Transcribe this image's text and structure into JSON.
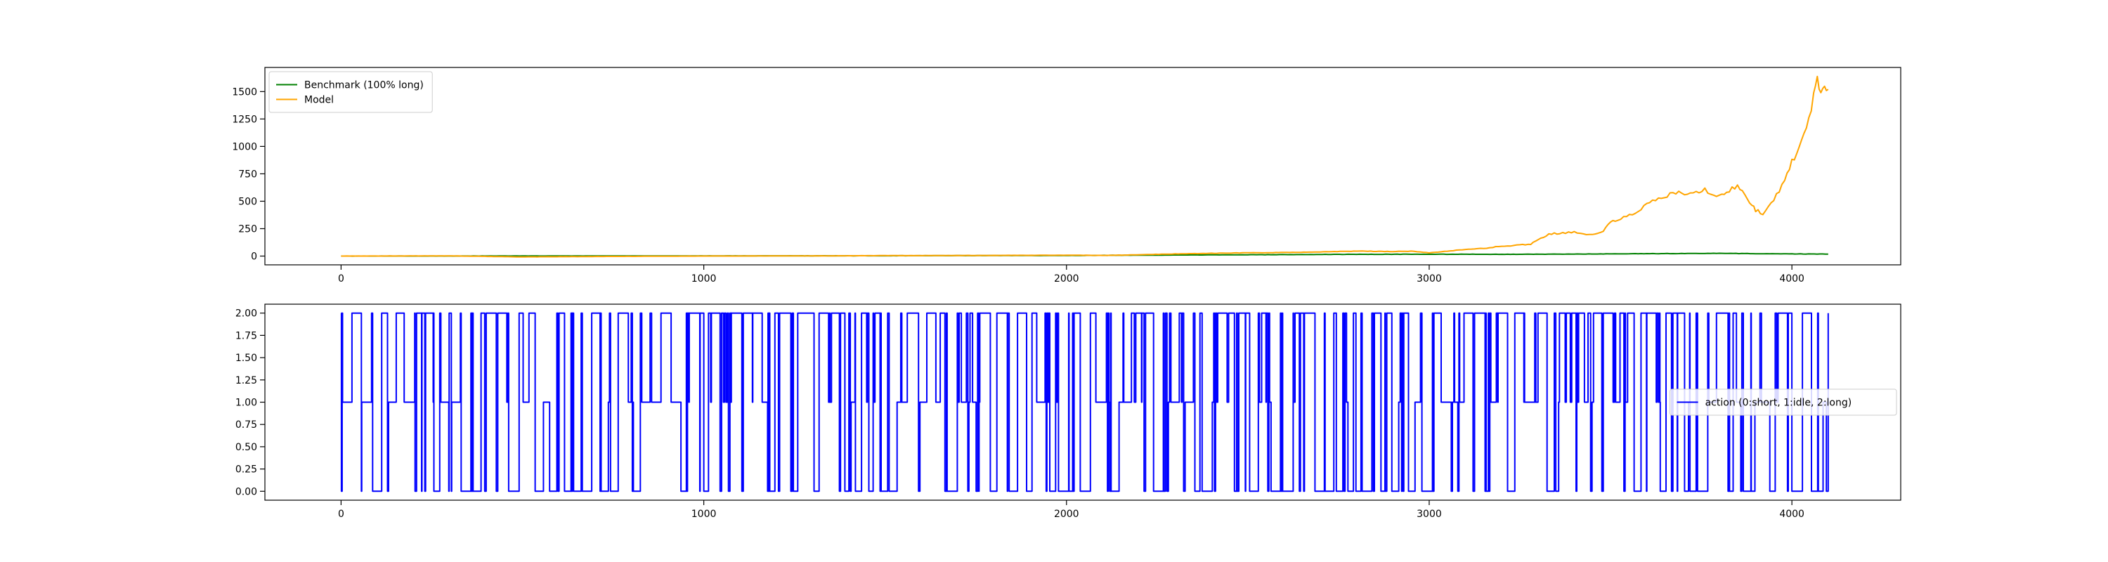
{
  "chart_data": [
    {
      "type": "line",
      "title": "",
      "xlabel": "",
      "ylabel": "",
      "xlim": [
        -210,
        4300
      ],
      "ylim": [
        -80,
        1720
      ],
      "xticks": [
        0,
        1000,
        2000,
        3000,
        4000
      ],
      "xtick_labels": [
        "0",
        "1000",
        "2000",
        "3000",
        "4000"
      ],
      "yticks": [
        0,
        250,
        500,
        750,
        1000,
        1250,
        1500
      ],
      "ytick_labels": [
        "0",
        "250",
        "500",
        "750",
        "1000",
        "1250",
        "1500"
      ],
      "grid": false,
      "legend_position": "upper-left",
      "series": [
        {
          "name": "Benchmark (100% long)",
          "color": "#008000",
          "x": [
            0,
            500,
            1000,
            1500,
            2000,
            2200,
            2500,
            2800,
            3000,
            3200,
            3400,
            3600,
            3800,
            3900,
            4000,
            4100
          ],
          "y": [
            0,
            1,
            2,
            3,
            5,
            8,
            12,
            16,
            17,
            16,
            18,
            22,
            25,
            22,
            20,
            18
          ]
        },
        {
          "name": "Model",
          "color": "#ffa500",
          "x": [
            0,
            300,
            500,
            700,
            1000,
            1300,
            1500,
            1800,
            2000,
            2100,
            2200,
            2300,
            2400,
            2500,
            2600,
            2700,
            2800,
            2900,
            2950,
            3000,
            3050,
            3100,
            3150,
            3200,
            3250,
            3280,
            3300,
            3330,
            3360,
            3400,
            3450,
            3480,
            3500,
            3520,
            3560,
            3600,
            3640,
            3680,
            3720,
            3760,
            3800,
            3820,
            3850,
            3870,
            3890,
            3900,
            3920,
            3950,
            3980,
            4000,
            4020,
            4040,
            4060,
            4070,
            4080,
            4090,
            4100
          ],
          "y": [
            0,
            2,
            -8,
            -4,
            0,
            2,
            4,
            6,
            8,
            6,
            12,
            20,
            25,
            30,
            32,
            38,
            45,
            42,
            44,
            30,
            45,
            60,
            70,
            90,
            100,
            110,
            150,
            200,
            210,
            220,
            190,
            230,
            310,
            330,
            380,
            470,
            530,
            580,
            560,
            600,
            540,
            580,
            640,
            560,
            470,
            420,
            390,
            500,
            700,
            860,
            1000,
            1200,
            1450,
            1620,
            1500,
            1580,
            1520
          ]
        }
      ]
    },
    {
      "type": "line",
      "title": "",
      "xlabel": "",
      "ylabel": "",
      "xlim": [
        -210,
        4300
      ],
      "ylim": [
        -0.1,
        2.1
      ],
      "xticks": [
        0,
        1000,
        2000,
        3000,
        4000
      ],
      "xtick_labels": [
        "0",
        "1000",
        "2000",
        "3000",
        "4000"
      ],
      "yticks": [
        0,
        0.25,
        0.5,
        0.75,
        1.0,
        1.25,
        1.5,
        1.75,
        2.0
      ],
      "ytick_labels": [
        "0.00",
        "0.25",
        "0.50",
        "0.75",
        "1.00",
        "1.25",
        "1.50",
        "1.75",
        "2.00"
      ],
      "grid": false,
      "legend_position": "center-right",
      "series": [
        {
          "name": "action (0:short, 1:idle, 2:long)",
          "color": "#0000ff",
          "x_start": 0,
          "x_end": 4100,
          "values_encoding": "step series of discrete actions; dense switching between 0, 1 and 2",
          "sample_values": [
            2,
            2,
            2,
            0,
            2,
            1,
            2,
            0,
            2,
            2,
            0,
            2,
            1,
            2,
            2,
            0,
            2,
            2,
            1,
            2,
            0,
            0,
            2,
            2,
            2,
            1,
            2,
            0,
            2,
            2,
            0,
            2,
            2,
            1,
            1,
            2,
            0,
            2,
            2,
            2,
            0,
            2,
            1,
            2,
            2,
            0,
            2,
            0,
            2,
            2,
            1,
            2,
            2,
            0,
            2,
            2,
            2,
            0,
            1,
            2,
            2,
            0,
            2,
            2,
            1,
            2,
            0,
            2,
            2,
            2
          ]
        }
      ]
    }
  ]
}
